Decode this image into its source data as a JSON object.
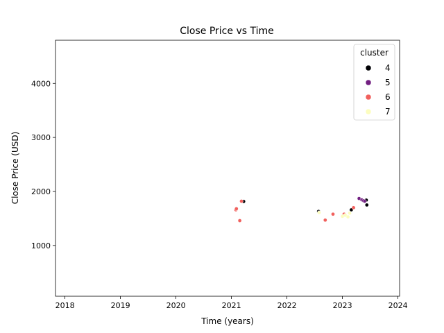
{
  "chart_data": {
    "type": "scatter",
    "title": "Close Price vs Time",
    "xlabel": "Time (years)",
    "ylabel": "Close Price (USD)",
    "xlim": [
      2017.83,
      2024.03
    ],
    "ylim": [
      60,
      4800
    ],
    "x_ticks": [
      2018,
      2019,
      2020,
      2021,
      2022,
      2023,
      2024
    ],
    "y_ticks": [
      1000,
      2000,
      3000,
      4000
    ],
    "grid": false,
    "legend": {
      "title": "cluster",
      "placement": "top-right"
    },
    "series": [
      {
        "name": "4",
        "color": "#000004",
        "points": [
          [
            2021.22,
            1815
          ],
          [
            2022.57,
            1630
          ],
          [
            2023.16,
            1660
          ],
          [
            2023.43,
            1840
          ],
          [
            2023.44,
            1750
          ]
        ]
      },
      {
        "name": "5",
        "color": "#721f81",
        "points": [
          [
            2023.3,
            1870
          ],
          [
            2023.35,
            1845
          ],
          [
            2023.38,
            1830
          ],
          [
            2023.4,
            1820
          ]
        ]
      },
      {
        "name": "6",
        "color": "#f1605d",
        "points": [
          [
            2021.08,
            1660
          ],
          [
            2021.09,
            1680
          ],
          [
            2021.15,
            1460
          ],
          [
            2021.18,
            1820
          ],
          [
            2022.69,
            1470
          ],
          [
            2022.83,
            1580
          ],
          [
            2023.03,
            1580
          ],
          [
            2023.2,
            1700
          ]
        ]
      },
      {
        "name": "7",
        "color": "#fcfdbf",
        "points": [
          [
            2022.58,
            1610
          ],
          [
            2023.0,
            1540
          ],
          [
            2023.05,
            1560
          ],
          [
            2023.1,
            1530
          ],
          [
            2023.13,
            1600
          ]
        ]
      }
    ]
  }
}
